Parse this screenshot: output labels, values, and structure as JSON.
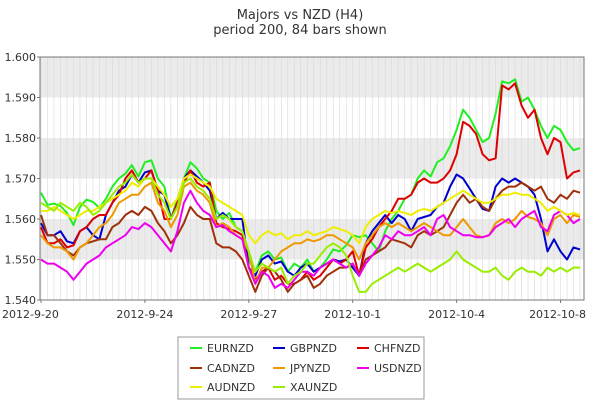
{
  "chart_data": {
    "type": "line",
    "title": "Majors vs NZD (H4)",
    "subtitle": "period 200, 84 bars shown",
    "xlabel": "",
    "ylabel": "",
    "x_ticks": [
      "2012-9-20",
      "2012-9-24",
      "2012-9-27",
      "2012-10-1",
      "2012-10-4",
      "2012-10-8"
    ],
    "x_tick_index": [
      0,
      16,
      32,
      48,
      64,
      80
    ],
    "y_ticks": [
      "1.540",
      "1.550",
      "1.560",
      "1.570",
      "1.580",
      "1.590",
      "1.600"
    ],
    "ylim": [
      1.54,
      1.6
    ],
    "n_bars": 84,
    "grid": "on, alternating horizontal bands",
    "legend_position": "bottom-center",
    "series": [
      {
        "name": "EURNZD",
        "color": "#22ee22",
        "values": [
          1.5665,
          1.5635,
          1.5638,
          1.5632,
          1.5615,
          1.5585,
          1.563,
          1.5648,
          1.5642,
          1.5628,
          1.565,
          1.568,
          1.57,
          1.5712,
          1.5733,
          1.5705,
          1.574,
          1.5745,
          1.57,
          1.568,
          1.56,
          1.565,
          1.57,
          1.574,
          1.5725,
          1.57,
          1.569,
          1.562,
          1.56,
          1.5615,
          1.558,
          1.557,
          1.55,
          1.547,
          1.551,
          1.552,
          1.55,
          1.5505,
          1.547,
          1.549,
          1.548,
          1.55,
          1.547,
          1.548,
          1.55,
          1.5525,
          1.552,
          1.5535,
          1.556,
          1.5555,
          1.556,
          1.554,
          1.552,
          1.557,
          1.56,
          1.562,
          1.565,
          1.566,
          1.57,
          1.572,
          1.5705,
          1.574,
          1.575,
          1.578,
          1.582,
          1.587,
          1.585,
          1.582,
          1.579,
          1.58,
          1.586,
          1.594,
          1.5935,
          1.5945,
          1.589,
          1.59,
          1.587,
          1.583,
          1.58,
          1.583,
          1.582,
          1.579,
          1.577,
          1.5775
        ]
      },
      {
        "name": "GBPNZD",
        "color": "#0000cc",
        "values": [
          1.559,
          1.556,
          1.556,
          1.557,
          1.5545,
          1.554,
          1.557,
          1.558,
          1.556,
          1.555,
          1.561,
          1.564,
          1.567,
          1.568,
          1.571,
          1.569,
          1.5715,
          1.572,
          1.567,
          1.566,
          1.56,
          1.564,
          1.57,
          1.572,
          1.5705,
          1.569,
          1.567,
          1.56,
          1.5615,
          1.56,
          1.56,
          1.56,
          1.548,
          1.546,
          1.55,
          1.551,
          1.549,
          1.5495,
          1.547,
          1.546,
          1.548,
          1.549,
          1.547,
          1.548,
          1.549,
          1.55,
          1.5495,
          1.55,
          1.548,
          1.546,
          1.554,
          1.557,
          1.559,
          1.561,
          1.559,
          1.561,
          1.56,
          1.557,
          1.56,
          1.5605,
          1.561,
          1.563,
          1.564,
          1.568,
          1.571,
          1.57,
          1.5675,
          1.565,
          1.5625,
          1.562,
          1.568,
          1.57,
          1.569,
          1.57,
          1.569,
          1.568,
          1.566,
          1.56,
          1.552,
          1.555,
          1.552,
          1.55,
          1.553,
          1.5525
        ]
      },
      {
        "name": "CHFNZD",
        "color": "#dd0000",
        "values": [
          1.558,
          1.554,
          1.554,
          1.555,
          1.553,
          1.5535,
          1.557,
          1.558,
          1.56,
          1.561,
          1.561,
          1.564,
          1.566,
          1.57,
          1.572,
          1.569,
          1.57,
          1.572,
          1.567,
          1.56,
          1.56,
          1.564,
          1.569,
          1.572,
          1.569,
          1.568,
          1.569,
          1.559,
          1.558,
          1.5575,
          1.557,
          1.556,
          1.548,
          1.545,
          1.547,
          1.548,
          1.545,
          1.546,
          1.544,
          1.544,
          1.545,
          1.547,
          1.545,
          1.546,
          1.548,
          1.55,
          1.549,
          1.55,
          1.552,
          1.546,
          1.553,
          1.555,
          1.558,
          1.56,
          1.562,
          1.565,
          1.565,
          1.566,
          1.569,
          1.57,
          1.569,
          1.569,
          1.57,
          1.572,
          1.576,
          1.584,
          1.583,
          1.581,
          1.576,
          1.5745,
          1.575,
          1.593,
          1.592,
          1.5935,
          1.588,
          1.585,
          1.587,
          1.58,
          1.576,
          1.58,
          1.579,
          1.57,
          1.5715,
          1.572
        ]
      },
      {
        "name": "CADNZD",
        "color": "#a0300a",
        "values": [
          1.561,
          1.556,
          1.556,
          1.554,
          1.552,
          1.551,
          1.553,
          1.554,
          1.5545,
          1.555,
          1.555,
          1.558,
          1.559,
          1.561,
          1.562,
          1.561,
          1.563,
          1.562,
          1.559,
          1.557,
          1.554,
          1.556,
          1.559,
          1.563,
          1.561,
          1.56,
          1.56,
          1.554,
          1.553,
          1.553,
          1.552,
          1.55,
          1.546,
          1.542,
          1.546,
          1.548,
          1.547,
          1.545,
          1.542,
          1.544,
          1.545,
          1.546,
          1.543,
          1.544,
          1.546,
          1.547,
          1.548,
          1.548,
          1.549,
          1.546,
          1.55,
          1.551,
          1.552,
          1.553,
          1.555,
          1.5545,
          1.554,
          1.553,
          1.556,
          1.557,
          1.556,
          1.557,
          1.558,
          1.561,
          1.564,
          1.566,
          1.564,
          1.565,
          1.563,
          1.562,
          1.565,
          1.567,
          1.568,
          1.568,
          1.569,
          1.568,
          1.567,
          1.568,
          1.565,
          1.564,
          1.566,
          1.565,
          1.567,
          1.5665
        ]
      },
      {
        "name": "JPYNZD",
        "color": "#ee9900",
        "values": [
          1.556,
          1.554,
          1.553,
          1.553,
          1.552,
          1.55,
          1.553,
          1.554,
          1.556,
          1.558,
          1.559,
          1.561,
          1.564,
          1.565,
          1.566,
          1.566,
          1.568,
          1.569,
          1.564,
          1.562,
          1.558,
          1.561,
          1.568,
          1.569,
          1.567,
          1.566,
          1.564,
          1.558,
          1.559,
          1.558,
          1.556,
          1.555,
          1.552,
          1.544,
          1.548,
          1.548,
          1.55,
          1.552,
          1.553,
          1.554,
          1.554,
          1.555,
          1.5545,
          1.555,
          1.556,
          1.556,
          1.555,
          1.554,
          1.553,
          1.55,
          1.554,
          1.556,
          1.558,
          1.559,
          1.558,
          1.559,
          1.558,
          1.557,
          1.558,
          1.559,
          1.558,
          1.557,
          1.556,
          1.556,
          1.558,
          1.56,
          1.558,
          1.556,
          1.5555,
          1.556,
          1.559,
          1.56,
          1.559,
          1.56,
          1.562,
          1.5605,
          1.56,
          1.559,
          1.556,
          1.56,
          1.561,
          1.559,
          1.561,
          1.5605
        ]
      },
      {
        "name": "USDNZD",
        "color": "#ee00ee",
        "values": [
          1.55,
          1.549,
          1.549,
          1.548,
          1.547,
          1.545,
          1.547,
          1.549,
          1.55,
          1.551,
          1.553,
          1.554,
          1.555,
          1.556,
          1.558,
          1.5575,
          1.559,
          1.558,
          1.556,
          1.554,
          1.552,
          1.557,
          1.564,
          1.567,
          1.564,
          1.562,
          1.561,
          1.558,
          1.5585,
          1.557,
          1.556,
          1.555,
          1.548,
          1.544,
          1.547,
          1.546,
          1.543,
          1.544,
          1.543,
          1.545,
          1.547,
          1.547,
          1.546,
          1.548,
          1.549,
          1.55,
          1.549,
          1.548,
          1.549,
          1.546,
          1.549,
          1.551,
          1.553,
          1.556,
          1.555,
          1.557,
          1.556,
          1.556,
          1.557,
          1.558,
          1.556,
          1.56,
          1.561,
          1.558,
          1.557,
          1.556,
          1.556,
          1.5555,
          1.5555,
          1.556,
          1.558,
          1.559,
          1.56,
          1.558,
          1.56,
          1.561,
          1.562,
          1.558,
          1.557,
          1.561,
          1.562,
          1.561,
          1.559,
          1.56
        ]
      },
      {
        "name": "AUDNZD",
        "color": "#eeee00",
        "values": [
          1.562,
          1.562,
          1.563,
          1.562,
          1.561,
          1.56,
          1.561,
          1.562,
          1.562,
          1.563,
          1.564,
          1.565,
          1.566,
          1.567,
          1.569,
          1.568,
          1.57,
          1.57,
          1.568,
          1.566,
          1.563,
          1.565,
          1.57,
          1.571,
          1.57,
          1.569,
          1.568,
          1.565,
          1.564,
          1.563,
          1.562,
          1.561,
          1.556,
          1.554,
          1.556,
          1.557,
          1.556,
          1.5565,
          1.555,
          1.556,
          1.556,
          1.557,
          1.556,
          1.5565,
          1.557,
          1.558,
          1.5575,
          1.557,
          1.556,
          1.554,
          1.558,
          1.56,
          1.561,
          1.562,
          1.5615,
          1.562,
          1.5615,
          1.561,
          1.562,
          1.5625,
          1.562,
          1.563,
          1.564,
          1.565,
          1.566,
          1.567,
          1.566,
          1.565,
          1.564,
          1.564,
          1.565,
          1.566,
          1.566,
          1.5665,
          1.566,
          1.566,
          1.565,
          1.564,
          1.562,
          1.563,
          1.562,
          1.561,
          1.5615,
          1.561
        ]
      },
      {
        "name": "XAUNZD",
        "color": "#99ee00",
        "values": [
          1.564,
          1.563,
          1.562,
          1.564,
          1.563,
          1.562,
          1.564,
          1.563,
          1.561,
          1.562,
          1.564,
          1.566,
          1.568,
          1.569,
          1.571,
          1.569,
          1.57,
          1.57,
          1.566,
          1.564,
          1.56,
          1.563,
          1.569,
          1.57,
          1.568,
          1.567,
          1.565,
          1.56,
          1.561,
          1.56,
          1.558,
          1.557,
          1.552,
          1.547,
          1.549,
          1.548,
          1.547,
          1.548,
          1.544,
          1.546,
          1.547,
          1.549,
          1.549,
          1.551,
          1.553,
          1.554,
          1.553,
          1.551,
          1.546,
          1.542,
          1.542,
          1.544,
          1.545,
          1.546,
          1.547,
          1.548,
          1.547,
          1.548,
          1.549,
          1.548,
          1.547,
          1.548,
          1.549,
          1.55,
          1.552,
          1.55,
          1.549,
          1.548,
          1.547,
          1.547,
          1.548,
          1.546,
          1.545,
          1.547,
          1.548,
          1.547,
          1.547,
          1.546,
          1.548,
          1.547,
          1.548,
          1.547,
          1.548,
          1.548
        ]
      }
    ]
  }
}
